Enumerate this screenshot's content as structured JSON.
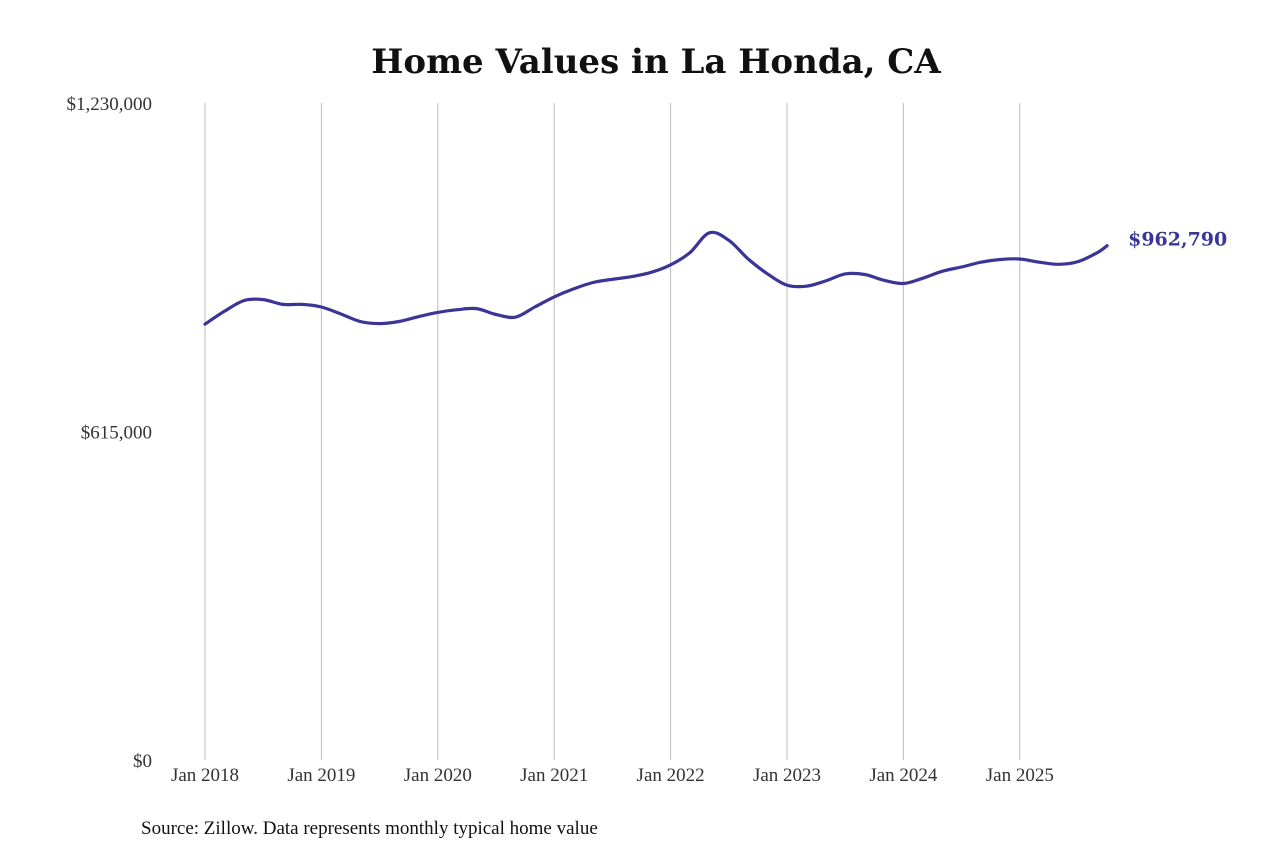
{
  "chart_data": {
    "type": "line",
    "title": "Home Values in La Honda, CA",
    "source_note": "Source: Zillow. Data represents monthly typical home value",
    "ylim": [
      0,
      1230000
    ],
    "y_ticks": [
      "$0",
      "$615,000",
      "$1,230,000"
    ],
    "y_tick_values": [
      0,
      615000,
      1230000
    ],
    "x_ticks": [
      "Jan 2018",
      "Jan 2019",
      "Jan 2020",
      "Jan 2021",
      "Jan 2022",
      "Jan 2023",
      "Jan 2024",
      "Jan 2025"
    ],
    "x_tick_dates": [
      "2018-01",
      "2019-01",
      "2020-01",
      "2021-01",
      "2022-01",
      "2023-01",
      "2024-01",
      "2025-01"
    ],
    "grid": "vertical",
    "line_color": "#3a3596",
    "series": [
      {
        "end_label": "$962,790",
        "points": [
          [
            "2018-01",
            816000
          ],
          [
            "2018-03",
            840000
          ],
          [
            "2018-05",
            860000
          ],
          [
            "2018-07",
            862000
          ],
          [
            "2018-09",
            853000
          ],
          [
            "2018-11",
            853000
          ],
          [
            "2019-01",
            848000
          ],
          [
            "2019-03",
            835000
          ],
          [
            "2019-05",
            821000
          ],
          [
            "2019-07",
            817000
          ],
          [
            "2019-09",
            821000
          ],
          [
            "2019-11",
            830000
          ],
          [
            "2020-01",
            838000
          ],
          [
            "2020-03",
            843000
          ],
          [
            "2020-05",
            845000
          ],
          [
            "2020-07",
            834000
          ],
          [
            "2020-09",
            829000
          ],
          [
            "2020-11",
            848000
          ],
          [
            "2021-01",
            867000
          ],
          [
            "2021-03",
            882000
          ],
          [
            "2021-05",
            894000
          ],
          [
            "2021-07",
            900000
          ],
          [
            "2021-09",
            905000
          ],
          [
            "2021-11",
            913000
          ],
          [
            "2022-01",
            927000
          ],
          [
            "2022-03",
            950000
          ],
          [
            "2022-05",
            987000
          ],
          [
            "2022-07",
            973000
          ],
          [
            "2022-09",
            938000
          ],
          [
            "2022-11",
            910000
          ],
          [
            "2023-01",
            889000
          ],
          [
            "2023-03",
            887000
          ],
          [
            "2023-05",
            897000
          ],
          [
            "2023-07",
            910000
          ],
          [
            "2023-09",
            909000
          ],
          [
            "2023-11",
            898000
          ],
          [
            "2024-01",
            892000
          ],
          [
            "2024-03",
            902000
          ],
          [
            "2024-05",
            915000
          ],
          [
            "2024-07",
            923000
          ],
          [
            "2024-09",
            932000
          ],
          [
            "2024-11",
            937000
          ],
          [
            "2025-01",
            938000
          ],
          [
            "2025-03",
            932000
          ],
          [
            "2025-05",
            928000
          ],
          [
            "2025-07",
            933000
          ],
          [
            "2025-09",
            950000
          ],
          [
            "2025-10",
            962790
          ]
        ]
      }
    ]
  }
}
